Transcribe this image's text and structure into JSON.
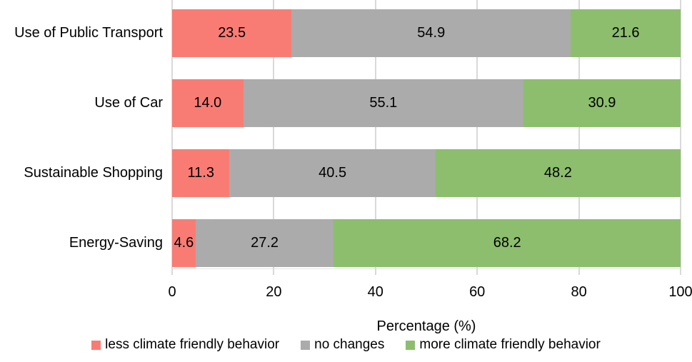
{
  "colors": {
    "less": "#f97c74",
    "no_change": "#ababab",
    "more": "#8cbe6e",
    "gridline": "#d9d9d9",
    "text": "#000000",
    "background": "#ffffff"
  },
  "chart_data": {
    "type": "bar",
    "stacked": true,
    "orientation": "horizontal",
    "title": "",
    "xlabel": "Percentage (%)",
    "ylabel": "",
    "xlim": [
      0,
      100
    ],
    "xticks": [
      0,
      20,
      40,
      60,
      80,
      100
    ],
    "grid": true,
    "legend_position": "bottom",
    "categories": [
      "Use of Public Transport",
      "Use of Car",
      "Sustainable Shopping",
      "Energy-Saving"
    ],
    "series": [
      {
        "name": "less climate friendly behavior",
        "color": "#f97c74",
        "values": [
          23.5,
          14.0,
          11.3,
          4.6
        ],
        "labels": [
          "23.5",
          "14.0",
          "11.3",
          "4.6"
        ]
      },
      {
        "name": "no changes",
        "color": "#ababab",
        "values": [
          54.9,
          55.1,
          40.5,
          27.2
        ],
        "labels": [
          "54.9",
          "55.1",
          "40.5",
          "27.2"
        ]
      },
      {
        "name": "more climate friendly behavior",
        "color": "#8cbe6e",
        "values": [
          21.6,
          30.9,
          48.2,
          68.2
        ],
        "labels": [
          "21.6",
          "30.9",
          "48.2",
          "68.2"
        ]
      }
    ]
  }
}
